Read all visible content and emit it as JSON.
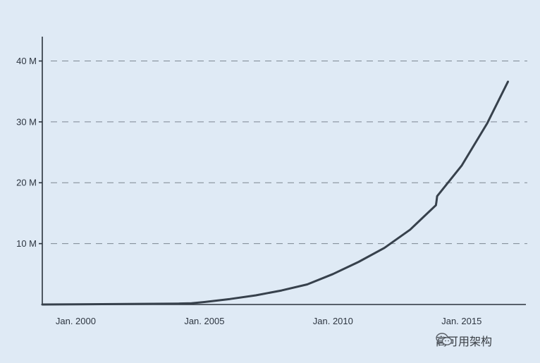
{
  "chart_data": {
    "type": "line",
    "title": "",
    "xlabel": "",
    "ylabel": "",
    "y_tick_labels": [
      "10 M",
      "20 M",
      "30 M",
      "40 M"
    ],
    "y_ticks": [
      10000000,
      20000000,
      30000000,
      40000000
    ],
    "x_tick_labels": [
      "Jan. 2000",
      "Jan. 2005",
      "Jan. 2010",
      "Jan. 2015"
    ],
    "x_ticks": [
      2000,
      2005,
      2010,
      2015
    ],
    "xlim": [
      1998.7,
      2017.5
    ],
    "ylim": [
      0,
      44000000
    ],
    "grid": "horizontal-dashed",
    "series": [
      {
        "x": [
          1998.7,
          2000,
          2002,
          2004,
          2004.5,
          2005,
          2006,
          2007,
          2008,
          2009,
          2010,
          2011,
          2012,
          2013,
          2013.5,
          2014,
          2014.02,
          2014.05,
          2015,
          2016,
          2016.8
        ],
        "y": [
          0,
          30000,
          80000,
          150000,
          200000,
          400000,
          900000,
          1500000,
          2300000,
          3300000,
          5000000,
          7000000,
          9300000,
          12300000,
          14300000,
          16300000,
          16800000,
          17800000,
          22800000,
          29800000,
          36600000
        ]
      }
    ]
  },
  "watermark": {
    "icon": "wechat-icon",
    "text": "高可用架构"
  }
}
